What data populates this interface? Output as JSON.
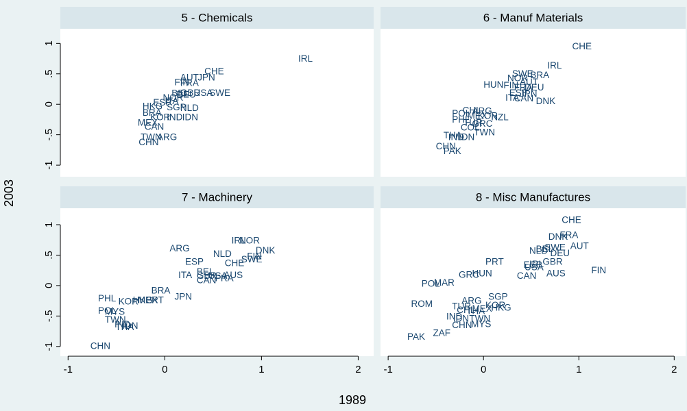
{
  "x_label": "1989",
  "y_label": "2003",
  "chart_data": [
    {
      "type": "scatter",
      "title": "5 - Chemicals",
      "color": "#1a476f",
      "xlim": [
        -1.08,
        2.16
      ],
      "ylim": [
        -1.19,
        1.24
      ],
      "yticks": [
        -1,
        {
          "value": -0.5,
          "label": "-.5"
        },
        0,
        {
          "value": 0.5,
          "label": ".5"
        },
        1
      ],
      "labels": [
        "IRL",
        "CHE",
        "AUT",
        "JPN",
        "FIN",
        "FRA",
        "NOR",
        "BEL",
        "GBR",
        "USA",
        "SWE",
        "DEU",
        "ESP",
        "ITA",
        "HKG",
        "SGP",
        "NLD",
        "BRA",
        "KOR",
        "IND",
        "IDN",
        "MEX",
        "CAN",
        "TWN",
        "ARG",
        "CHN"
      ],
      "x": [
        1.38,
        0.41,
        0.16,
        0.34,
        0.1,
        0.16,
        -0.02,
        0.07,
        0.16,
        0.3,
        0.46,
        0.12,
        -0.12,
        0.0,
        -0.23,
        0.02,
        0.16,
        -0.23,
        -0.15,
        0.02,
        0.18,
        -0.28,
        -0.21,
        -0.25,
        -0.08,
        -0.27
      ],
      "values": [
        0.74,
        0.53,
        0.43,
        0.43,
        0.35,
        0.34,
        0.1,
        0.17,
        0.18,
        0.18,
        0.18,
        0.15,
        0.02,
        0.04,
        -0.04,
        -0.06,
        -0.07,
        -0.15,
        -0.22,
        -0.22,
        -0.22,
        -0.31,
        -0.38,
        -0.55,
        -0.55,
        -0.63
      ]
    },
    {
      "type": "scatter",
      "title": "6 - Manuf Materials",
      "color": "#1a476f",
      "xlim": [
        -1.08,
        2.12
      ],
      "ylim": [
        -1.19,
        1.24
      ],
      "labels": [
        "CHE",
        "IRL",
        "SWE",
        "BRA",
        "NOR",
        "AUT",
        "HUN",
        "FIN",
        "FRA",
        "DEU",
        "ESP",
        "JPN",
        "CAN",
        "ITA",
        "DNK",
        "POL",
        "CHL",
        "ARG",
        "PHL",
        "MEX",
        "KOR",
        "NZL",
        "TUR",
        "GRC",
        "COL",
        "TWN",
        "THA",
        "IND",
        "IDN",
        "CHN",
        "PAK"
      ],
      "x": [
        0.93,
        0.67,
        0.3,
        0.49,
        0.25,
        0.38,
        0.0,
        0.21,
        0.32,
        0.43,
        0.27,
        0.38,
        0.32,
        0.23,
        0.55,
        -0.33,
        -0.22,
        -0.12,
        -0.33,
        -0.17,
        -0.06,
        0.08,
        -0.21,
        -0.12,
        -0.24,
        -0.1,
        -0.42,
        -0.37,
        -0.26,
        -0.5,
        -0.42
      ],
      "values": [
        0.94,
        0.63,
        0.49,
        0.47,
        0.42,
        0.36,
        0.31,
        0.3,
        0.27,
        0.27,
        0.18,
        0.16,
        0.09,
        0.1,
        0.04,
        -0.16,
        -0.11,
        -0.12,
        -0.26,
        -0.2,
        -0.2,
        -0.22,
        -0.31,
        -0.33,
        -0.39,
        -0.47,
        -0.52,
        -0.55,
        -0.55,
        -0.7,
        -0.78
      ]
    },
    {
      "type": "scatter",
      "title": "7 - Machinery",
      "color": "#1a476f",
      "xlim": [
        -1.08,
        2.16
      ],
      "ylim": [
        -1.16,
        1.27
      ],
      "xticks": [
        -1,
        0,
        1,
        2
      ],
      "yticks": [
        -1,
        {
          "value": -0.5,
          "label": "-.5"
        },
        0,
        {
          "value": 0.5,
          "label": ".5"
        },
        1
      ],
      "labels": [
        "IRL",
        "NOR",
        "DNK",
        "ARG",
        "NLD",
        "FIN",
        "SWE",
        "ESP",
        "CHE",
        "BEL",
        "AUS",
        "ITA",
        "GBR",
        "CAN",
        "FRA",
        "USA",
        "BRA",
        "JPN",
        "PHL",
        "KOR",
        "MEX",
        "HKG",
        "PRT",
        "POL",
        "MYS",
        "TWN",
        "IND",
        "IDN",
        "THA",
        "CHN"
      ],
      "x": [
        0.69,
        0.77,
        0.94,
        0.05,
        0.5,
        0.85,
        0.79,
        0.21,
        0.62,
        0.33,
        0.61,
        0.14,
        0.33,
        0.33,
        0.52,
        0.45,
        -0.14,
        0.1,
        -0.69,
        -0.48,
        -0.28,
        -0.33,
        -0.2,
        -0.69,
        -0.62,
        -0.62,
        -0.52,
        -0.44,
        -0.51,
        -0.77
      ],
      "values": [
        0.73,
        0.73,
        0.57,
        0.6,
        0.51,
        0.47,
        0.42,
        0.38,
        0.36,
        0.22,
        0.16,
        0.16,
        0.15,
        0.08,
        0.11,
        0.15,
        -0.09,
        -0.19,
        -0.22,
        -0.27,
        -0.25,
        -0.25,
        -0.25,
        -0.42,
        -0.44,
        -0.57,
        -0.65,
        -0.67,
        -0.69,
        -1.0
      ]
    },
    {
      "type": "scatter",
      "title": "8 - Misc Manufactures",
      "color": "#1a476f",
      "xlim": [
        -1.08,
        2.12
      ],
      "ylim": [
        -1.16,
        1.27
      ],
      "xticks": [
        -1,
        0,
        1,
        2
      ],
      "labels": [
        "CHE",
        "DNK",
        "FRA",
        "AUT",
        "NLD",
        "BEL",
        "SWE",
        "DEU",
        "PRT",
        "GBR",
        "ESP",
        "USA",
        "IRL",
        "AUS",
        "CAN",
        "FIN",
        "GRC",
        "HUN",
        "POL",
        "MAR",
        "ROM",
        "SGP",
        "ARG",
        "TUR",
        "KOR",
        "HKG",
        "CHL",
        "MEX",
        "THA",
        "IND",
        "MYS",
        "CHN",
        "IDN",
        "TWN",
        "ZAF",
        "PAK"
      ],
      "x": [
        0.82,
        0.68,
        0.8,
        0.91,
        0.48,
        0.55,
        0.64,
        0.7,
        0.02,
        0.62,
        0.42,
        0.43,
        0.48,
        0.66,
        0.35,
        1.13,
        -0.26,
        -0.12,
        -0.65,
        -0.52,
        -0.76,
        0.05,
        -0.23,
        -0.33,
        0.02,
        0.08,
        -0.28,
        -0.12,
        -0.18,
        -0.39,
        -0.13,
        -0.33,
        -0.32,
        -0.15,
        -0.53,
        -0.8
      ],
      "values": [
        1.07,
        0.79,
        0.82,
        0.64,
        0.56,
        0.59,
        0.62,
        0.52,
        0.38,
        0.38,
        0.33,
        0.29,
        0.34,
        0.19,
        0.15,
        0.24,
        0.17,
        0.19,
        0.02,
        0.04,
        -0.31,
        -0.19,
        -0.26,
        -0.35,
        -0.33,
        -0.37,
        -0.41,
        -0.39,
        -0.43,
        -0.52,
        -0.64,
        -0.66,
        -0.55,
        -0.55,
        -0.79,
        -0.85
      ]
    }
  ]
}
